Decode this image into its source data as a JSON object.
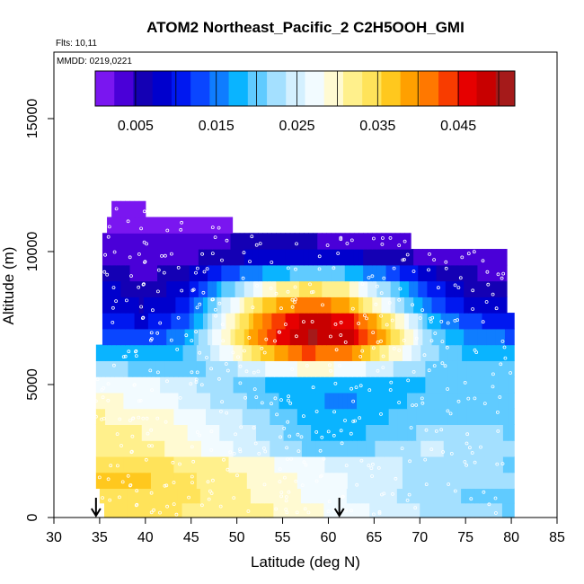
{
  "chart_data": {
    "type": "heatmap",
    "title": "ATOM2 Northeast_Pacific_2 C2H5OOH_GMI",
    "flights_label": "Flts: 10,11",
    "dates_label": "MMDD: 0219,0221",
    "xlabel": "Latitude (deg N)",
    "ylabel": "Altitude (m)",
    "xlim": [
      30,
      85
    ],
    "ylim": [
      0,
      17500
    ],
    "x_ticks": [
      30,
      35,
      40,
      45,
      50,
      55,
      60,
      65,
      70,
      75,
      80,
      85
    ],
    "y_ticks": [
      0,
      5000,
      10000,
      15000
    ],
    "colorbar": {
      "range": [
        0,
        0.052
      ],
      "tick_values": [
        0.005,
        0.015,
        0.025,
        0.035,
        0.045
      ],
      "tick_labels": [
        "0.005",
        "0.015",
        "0.025",
        "0.035",
        "0.045"
      ],
      "colors": [
        "#7a16f0",
        "#4a00d8",
        "#1400b4",
        "#0000cd",
        "#0018f0",
        "#0a46ff",
        "#0f7dff",
        "#0ab4ff",
        "#60cbff",
        "#a4e0ff",
        "#d4f0ff",
        "#f2fbff",
        "#fffad2",
        "#fff08c",
        "#ffe35a",
        "#ffc81e",
        "#ffa000",
        "#ff7800",
        "#f83c00",
        "#e60000",
        "#c80000",
        "#a51a1a"
      ]
    },
    "grid": false,
    "legend": "colorbar top",
    "layers": [
      {
        "alt": 300,
        "lat": [
          35.5,
          80.3
        ],
        "values": [
          0.034,
          0.034,
          0.033,
          0.032,
          0.031,
          0.029,
          0.027,
          0.025,
          0.023,
          0.022,
          0.021
        ]
      },
      {
        "alt": 800,
        "lat": [
          35.0,
          80.3
        ],
        "values": [
          0.035,
          0.035,
          0.034,
          0.032,
          0.03,
          0.028,
          0.026,
          0.024,
          0.022,
          0.021,
          0.021
        ]
      },
      {
        "alt": 1400,
        "lat": [
          34.6,
          80.3
        ],
        "values": [
          0.037,
          0.036,
          0.034,
          0.032,
          0.03,
          0.028,
          0.026,
          0.024,
          0.023,
          0.022,
          0.022
        ]
      },
      {
        "alt": 2000,
        "lat": [
          34.6,
          80.3
        ],
        "values": [
          0.035,
          0.034,
          0.033,
          0.031,
          0.029,
          0.027,
          0.025,
          0.024,
          0.023,
          0.022,
          0.021
        ]
      },
      {
        "alt": 2600,
        "lat": [
          34.6,
          80.3
        ],
        "values": [
          0.033,
          0.032,
          0.03,
          0.027,
          0.024,
          0.021,
          0.02,
          0.022,
          0.024,
          0.023,
          0.022
        ]
      },
      {
        "alt": 3200,
        "lat": [
          34.6,
          80.3
        ],
        "values": [
          0.032,
          0.031,
          0.029,
          0.026,
          0.023,
          0.019,
          0.018,
          0.02,
          0.022,
          0.022,
          0.021
        ]
      },
      {
        "alt": 3800,
        "lat": [
          34.6,
          80.3
        ],
        "values": [
          0.031,
          0.03,
          0.028,
          0.025,
          0.022,
          0.018,
          0.017,
          0.019,
          0.021,
          0.021,
          0.021
        ]
      },
      {
        "alt": 4400,
        "lat": [
          34.6,
          80.3
        ],
        "values": [
          0.029,
          0.028,
          0.026,
          0.023,
          0.02,
          0.017,
          0.016,
          0.018,
          0.02,
          0.02,
          0.02
        ]
      },
      {
        "alt": 5000,
        "lat": [
          34.6,
          80.3
        ],
        "values": [
          0.028,
          0.027,
          0.025,
          0.022,
          0.019,
          0.017,
          0.017,
          0.018,
          0.019,
          0.019,
          0.019
        ]
      },
      {
        "alt": 5600,
        "lat": [
          34.6,
          80.3
        ],
        "values": [
          0.022,
          0.021,
          0.02,
          0.022,
          0.026,
          0.029,
          0.028,
          0.024,
          0.021,
          0.019,
          0.019
        ]
      },
      {
        "alt": 6200,
        "lat": [
          34.6,
          80.3
        ],
        "values": [
          0.018,
          0.017,
          0.018,
          0.026,
          0.036,
          0.043,
          0.041,
          0.031,
          0.022,
          0.018,
          0.018
        ]
      },
      {
        "alt": 6800,
        "lat": [
          35.3,
          80.3
        ],
        "values": [
          0.014,
          0.012,
          0.016,
          0.03,
          0.043,
          0.05,
          0.048,
          0.036,
          0.021,
          0.015,
          0.014
        ]
      },
      {
        "alt": 7400,
        "lat": [
          35.3,
          80.3
        ],
        "values": [
          0.011,
          0.009,
          0.013,
          0.028,
          0.042,
          0.049,
          0.046,
          0.033,
          0.018,
          0.012,
          0.011
        ]
      },
      {
        "alt": 8000,
        "lat": [
          35.3,
          79.5
        ],
        "values": [
          0.009,
          0.007,
          0.01,
          0.024,
          0.036,
          0.042,
          0.039,
          0.027,
          0.015,
          0.009,
          0.008
        ]
      },
      {
        "alt": 8600,
        "lat": [
          35.3,
          79.5
        ],
        "values": [
          0.008,
          0.006,
          0.008,
          0.019,
          0.029,
          0.034,
          0.032,
          0.022,
          0.012,
          0.007,
          0.006
        ]
      },
      {
        "alt": 9200,
        "lat": [
          35.3,
          79.5
        ],
        "values": [
          0.006,
          0.004,
          0.006,
          0.012,
          0.017,
          0.02,
          0.019,
          0.014,
          0.008,
          0.005,
          0.004
        ]
      },
      {
        "alt": 9800,
        "lat": [
          35.3,
          79.5
        ],
        "values": [
          0.004,
          0.003,
          0.004,
          0.006,
          0.008,
          0.009,
          0.008,
          0.006,
          0.004,
          0.003,
          0.003
        ]
      },
      {
        "alt": 10400,
        "lat": [
          35.3,
          69.0
        ],
        "values": [
          0.003,
          0.003,
          0.003,
          0.004,
          0.005,
          0.005,
          0.005,
          0.004,
          0.003,
          0.003
        ]
      },
      {
        "alt": 11000,
        "lat": [
          35.8,
          49.5
        ],
        "values": [
          0.002,
          0.002,
          0.002,
          0.002,
          0.002
        ]
      },
      {
        "alt": 11600,
        "lat": [
          36.3,
          40.0
        ],
        "values": [
          0.001,
          0.001
        ]
      }
    ],
    "markers": [
      {
        "lat": 34.6,
        "alt": 0
      },
      {
        "lat": 61.2,
        "alt": 0
      }
    ]
  }
}
